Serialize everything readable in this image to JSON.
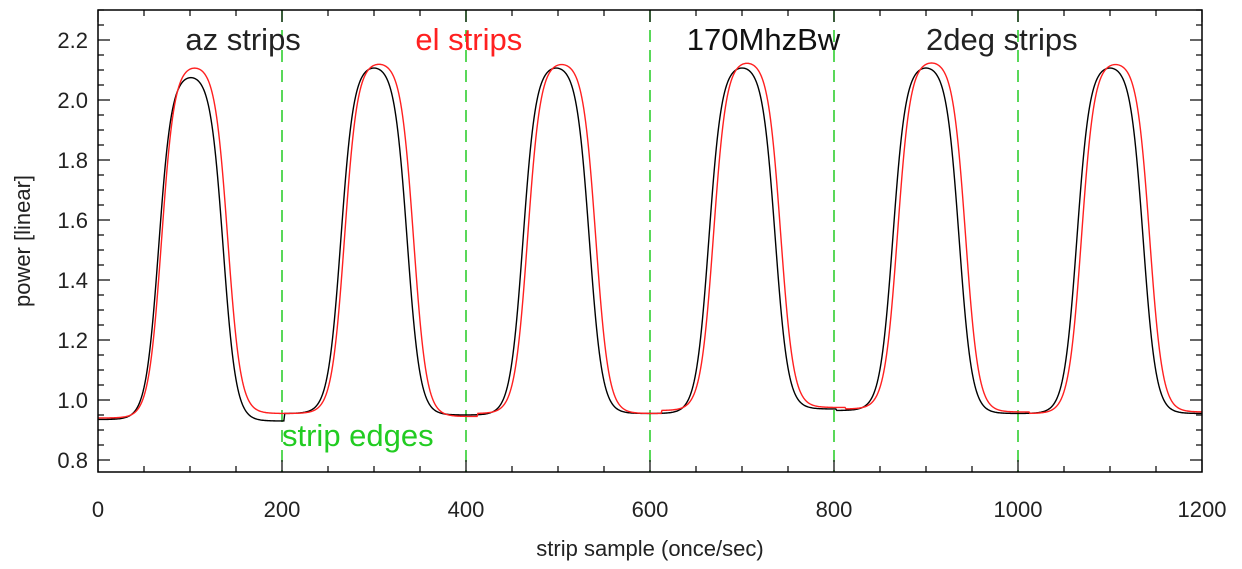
{
  "chart_data": {
    "type": "line",
    "title": "",
    "xlabel": "strip sample (once/sec)",
    "ylabel": "power [linear]",
    "xlim": [
      0,
      1200
    ],
    "ylim": [
      0.76,
      2.3
    ],
    "x_ticks": [
      0,
      200,
      400,
      600,
      800,
      1000,
      1200
    ],
    "x_tick_labels": [
      "0",
      "200",
      "400",
      "600",
      "800",
      "1000",
      "1200"
    ],
    "y_ticks": [
      0.8,
      1.0,
      1.2,
      1.4,
      1.6,
      1.8,
      2.0,
      2.2
    ],
    "y_tick_labels": [
      "0.8",
      "1.0",
      "1.2",
      "1.4",
      "1.6",
      "1.8",
      "2.0",
      "2.2"
    ],
    "grid": false,
    "strip_edges": [
      200,
      400,
      600,
      800,
      1000
    ],
    "colors": {
      "black": "#000000",
      "red": "#ff2020",
      "green": "#22cc22",
      "text": "#222222"
    },
    "series": [
      {
        "color": "#000000",
        "peaks": [
          {
            "center": 103,
            "rise_mid": 66,
            "fall_mid": 136,
            "peak": 2.09,
            "base_left": 0.935,
            "base_right": 0.93
          },
          {
            "center": 302,
            "rise_mid": 264,
            "fall_mid": 336,
            "peak": 2.12,
            "base_left": 0.955,
            "base_right": 0.95
          },
          {
            "center": 500,
            "rise_mid": 462,
            "fall_mid": 534,
            "peak": 2.12,
            "base_left": 0.95,
            "base_right": 0.955
          },
          {
            "center": 702,
            "rise_mid": 664,
            "fall_mid": 736,
            "peak": 2.12,
            "base_left": 0.955,
            "base_right": 0.97
          },
          {
            "center": 902,
            "rise_mid": 864,
            "fall_mid": 936,
            "peak": 2.12,
            "base_left": 0.965,
            "base_right": 0.955
          },
          {
            "center": 1102,
            "rise_mid": 1064,
            "fall_mid": 1136,
            "peak": 2.12,
            "base_left": 0.955,
            "base_right": 0.955
          }
        ]
      },
      {
        "color": "#ff2020",
        "peaks": [
          {
            "center": 110,
            "rise_mid": 69,
            "fall_mid": 141,
            "peak": 2.12,
            "base_left": 0.94,
            "base_right": 0.955
          },
          {
            "center": 312,
            "rise_mid": 268,
            "fall_mid": 343,
            "peak": 2.13,
            "base_left": 0.955,
            "base_right": 0.945
          },
          {
            "center": 512,
            "rise_mid": 467,
            "fall_mid": 541,
            "peak": 2.13,
            "base_left": 0.955,
            "base_right": 0.955
          },
          {
            "center": 712,
            "rise_mid": 669,
            "fall_mid": 742,
            "peak": 2.135,
            "base_left": 0.965,
            "base_right": 0.975
          },
          {
            "center": 912,
            "rise_mid": 869,
            "fall_mid": 943,
            "peak": 2.135,
            "base_left": 0.97,
            "base_right": 0.96
          },
          {
            "center": 1112,
            "rise_mid": 1069,
            "fall_mid": 1143,
            "peak": 2.13,
            "base_left": 0.955,
            "base_right": 0.96
          }
        ]
      }
    ],
    "annotations": [
      {
        "text": "az strips",
        "x": 95,
        "y": 2.2,
        "color": "#222222"
      },
      {
        "text": "el strips",
        "x": 345,
        "y": 2.2,
        "color": "#ff2020"
      },
      {
        "text": "170MhzBw",
        "x": 640,
        "y": 2.2,
        "color": "#111111"
      },
      {
        "text": "2deg strips",
        "x": 900,
        "y": 2.2,
        "color": "#222222"
      },
      {
        "text": "strip edges",
        "x": 200,
        "y": 0.88,
        "color": "#22cc22"
      }
    ]
  }
}
